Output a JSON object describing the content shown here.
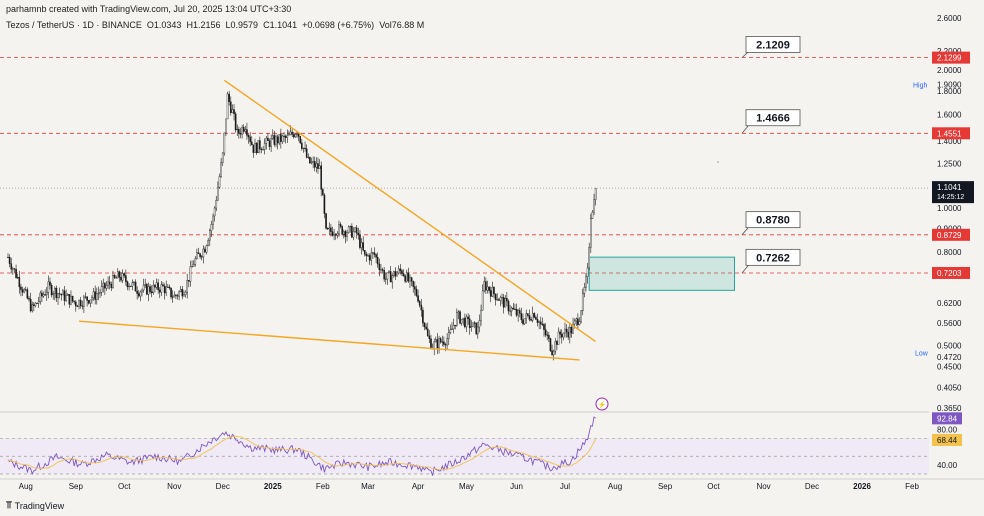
{
  "header": {
    "credit": "parhamnb created with TradingView.com, Jul 20, 2025 13:04 UTC+3:30",
    "symbol": "Tezos / TetherUS · 1D · BINANCE",
    "ohlc": {
      "o_label": "O",
      "o": "1.0343",
      "h_label": "H",
      "h": "1.2156",
      "l_label": "L",
      "l": "0.9579",
      "c_label": "C",
      "c": "1.1041",
      "change": "+0.0698 (+6.75%)",
      "vol_label": "Vol",
      "vol": "76.88 M"
    }
  },
  "footer": {
    "brand": "TradingView"
  },
  "colors": {
    "candle": "#1a1a1a",
    "trendline": "#f5a623",
    "level_line": "#e53935",
    "zone": "#26a69a",
    "rsi": "#7e57c2",
    "rsi_ma": "#f2c14e",
    "background": "#f4f3ef"
  },
  "chart_data": [
    {
      "type": "candlestick",
      "scale": "log",
      "ylim": [
        0.365,
        2.6
      ],
      "x_labels": [
        "Aug",
        "Sep",
        "Oct",
        "Nov",
        "Dec",
        "2025",
        "Feb",
        "Mar",
        "Apr",
        "May",
        "Jun",
        "Jul",
        "Aug",
        "Sep",
        "Oct",
        "Nov",
        "Dec",
        "2026",
        "Feb"
      ],
      "y_ticks": [
        "2.6000",
        "2.2000",
        "2.0000",
        "1.8000",
        "1.6000",
        "1.4000",
        "1.2500",
        "1.0000",
        "0.9000",
        "0.8000",
        "0.6200",
        "0.5600",
        "0.5000",
        "0.4500",
        "0.4050",
        "0.3650"
      ],
      "y_tick_values": [
        2.6,
        2.2,
        2.0,
        1.8,
        1.6,
        1.4,
        1.25,
        1.0,
        0.9,
        0.8,
        0.62,
        0.56,
        0.5,
        0.45,
        0.405,
        0.365
      ],
      "anchors": [
        {
          "d": "2024-07-21",
          "c": 0.78
        },
        {
          "d": "2024-08-05",
          "c": 0.6
        },
        {
          "d": "2024-08-15",
          "c": 0.67
        },
        {
          "d": "2024-09-01",
          "c": 0.62
        },
        {
          "d": "2024-09-12",
          "c": 0.64
        },
        {
          "d": "2024-09-28",
          "c": 0.71
        },
        {
          "d": "2024-10-10",
          "c": 0.66
        },
        {
          "d": "2024-10-25",
          "c": 0.67
        },
        {
          "d": "2024-11-01",
          "c": 0.64
        },
        {
          "d": "2024-11-08",
          "c": 0.67
        },
        {
          "d": "2024-11-13",
          "c": 0.76
        },
        {
          "d": "2024-11-20",
          "c": 0.82
        },
        {
          "d": "2024-11-25",
          "c": 0.95
        },
        {
          "d": "2024-12-01",
          "c": 1.3
        },
        {
          "d": "2024-12-04",
          "c": 1.75
        },
        {
          "d": "2024-12-07",
          "c": 1.62
        },
        {
          "d": "2024-12-10",
          "c": 1.45
        },
        {
          "d": "2024-12-15",
          "c": 1.52
        },
        {
          "d": "2024-12-20",
          "c": 1.35
        },
        {
          "d": "2025-01-01",
          "c": 1.4
        },
        {
          "d": "2025-01-10",
          "c": 1.42
        },
        {
          "d": "2025-01-16",
          "c": 1.48
        },
        {
          "d": "2025-01-23",
          "c": 1.26
        },
        {
          "d": "2025-01-30",
          "c": 1.22
        },
        {
          "d": "2025-02-03",
          "c": 0.88
        },
        {
          "d": "2025-02-10",
          "c": 0.9
        },
        {
          "d": "2025-02-22",
          "c": 0.88
        },
        {
          "d": "2025-02-27",
          "c": 0.78
        },
        {
          "d": "2025-03-05",
          "c": 0.79
        },
        {
          "d": "2025-03-12",
          "c": 0.7
        },
        {
          "d": "2025-03-22",
          "c": 0.73
        },
        {
          "d": "2025-04-01",
          "c": 0.64
        },
        {
          "d": "2025-04-07",
          "c": 0.52
        },
        {
          "d": "2025-04-10",
          "c": 0.5
        },
        {
          "d": "2025-04-20",
          "c": 0.52
        },
        {
          "d": "2025-04-25",
          "c": 0.58
        },
        {
          "d": "2025-05-08",
          "c": 0.54
        },
        {
          "d": "2025-05-12",
          "c": 0.68
        },
        {
          "d": "2025-05-22",
          "c": 0.63
        },
        {
          "d": "2025-06-05",
          "c": 0.57
        },
        {
          "d": "2025-06-12",
          "c": 0.59
        },
        {
          "d": "2025-06-20",
          "c": 0.52
        },
        {
          "d": "2025-06-23",
          "c": 0.49
        },
        {
          "d": "2025-06-28",
          "c": 0.53
        },
        {
          "d": "2025-07-05",
          "c": 0.54
        },
        {
          "d": "2025-07-10",
          "c": 0.58
        },
        {
          "d": "2025-07-13",
          "c": 0.66
        },
        {
          "d": "2025-07-15",
          "c": 0.72
        },
        {
          "d": "2025-07-17",
          "c": 0.97
        },
        {
          "d": "2025-07-19",
          "c": 1.035
        },
        {
          "d": "2025-07-20",
          "c": 1.1041
        }
      ],
      "trendlines": [
        {
          "name": "",
          "from": {
            "d": "2024-12-02",
            "v": 1.9
          },
          "to": {
            "d": "2025-07-20",
            "v": 0.51
          }
        },
        {
          "name": "",
          "from": {
            "d": "2024-09-03",
            "v": 0.565
          },
          "to": {
            "d": "2025-07-10",
            "v": 0.465
          }
        }
      ],
      "levels": [
        {
          "value": 2.1299,
          "label": "2.1299",
          "callout": "2.1209",
          "callout_level": 2.1209
        },
        {
          "value": 1.4551,
          "label": "1.4551",
          "callout": "1.4666",
          "callout_level": 1.4666
        },
        {
          "value": 0.8729,
          "label": "0.8729",
          "callout": "0.8780",
          "callout_level": 0.878
        },
        {
          "value": 0.7203,
          "label": "0.7203",
          "callout": "0.7262",
          "callout_level": 0.7262
        }
      ],
      "zone": {
        "from": "2025-07-16",
        "to": "2025-10-14",
        "low": 0.66,
        "high": 0.78
      },
      "last_price": {
        "value": 1.1041,
        "label": "1.1041",
        "countdown": "14:25:12"
      },
      "high": {
        "label": "High",
        "value": "1.9090"
      },
      "low": {
        "label": "Low",
        "value": "0.4720"
      }
    },
    {
      "type": "line",
      "name": "RSI",
      "ylim": [
        30,
        100
      ],
      "y_ticks": [
        "80.00",
        "40.00"
      ],
      "y_tick_values": [
        80,
        40
      ],
      "last_values": [
        {
          "label": "92.84",
          "value": 92.84
        },
        {
          "label": "68.44",
          "value": 68.44
        }
      ],
      "rsi_anchors": [
        {
          "d": "2024-07-21",
          "v": 44
        },
        {
          "d": "2024-08-05",
          "v": 34
        },
        {
          "d": "2024-08-20",
          "v": 49
        },
        {
          "d": "2024-09-05",
          "v": 41
        },
        {
          "d": "2024-09-20",
          "v": 51
        },
        {
          "d": "2024-10-05",
          "v": 43
        },
        {
          "d": "2024-10-20",
          "v": 50
        },
        {
          "d": "2024-11-05",
          "v": 44
        },
        {
          "d": "2024-11-22",
          "v": 66
        },
        {
          "d": "2024-12-02",
          "v": 77
        },
        {
          "d": "2024-12-10",
          "v": 70
        },
        {
          "d": "2024-12-18",
          "v": 60
        },
        {
          "d": "2025-01-05",
          "v": 57
        },
        {
          "d": "2025-01-16",
          "v": 58
        },
        {
          "d": "2025-02-02",
          "v": 36
        },
        {
          "d": "2025-02-15",
          "v": 43
        },
        {
          "d": "2025-03-01",
          "v": 38
        },
        {
          "d": "2025-03-15",
          "v": 43
        },
        {
          "d": "2025-04-01",
          "v": 39
        },
        {
          "d": "2025-04-08",
          "v": 31
        },
        {
          "d": "2025-04-25",
          "v": 44
        },
        {
          "d": "2025-05-12",
          "v": 63
        },
        {
          "d": "2025-05-25",
          "v": 55
        },
        {
          "d": "2025-06-10",
          "v": 46
        },
        {
          "d": "2025-06-22",
          "v": 37
        },
        {
          "d": "2025-07-05",
          "v": 45
        },
        {
          "d": "2025-07-14",
          "v": 67
        },
        {
          "d": "2025-07-18",
          "v": 88
        },
        {
          "d": "2025-07-20",
          "v": 92.84
        }
      ]
    }
  ]
}
